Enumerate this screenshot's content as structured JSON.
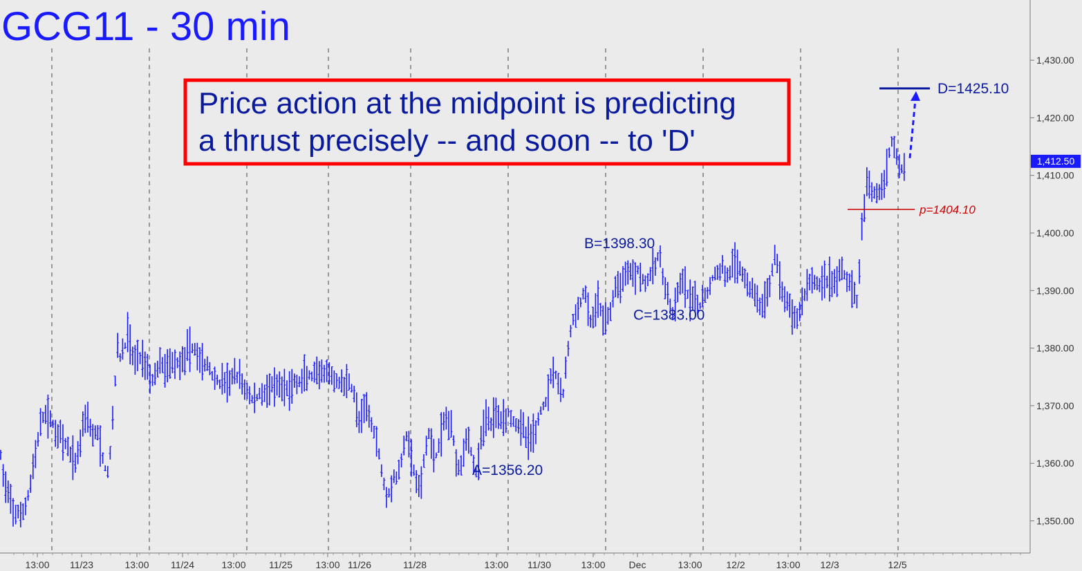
{
  "chart_data": {
    "type": "bar",
    "style": "ohlc-bars",
    "title": "GCG11 - 30 min",
    "annotation": {
      "line1": "Price action at the midpoint is predicting",
      "line2": "a thrust precisely -- and soon -- to 'D'"
    },
    "ylim": [
      1346,
      1432
    ],
    "yticks": [
      1350,
      1360,
      1370,
      1380,
      1390,
      1400,
      1410,
      1420,
      1430
    ],
    "ytick_labels": [
      "1,350.00",
      "1,360.00",
      "1,370.00",
      "1,380.00",
      "1,390.00",
      "1,400.00",
      "1,410.00",
      "1,420.00",
      "1,430.00"
    ],
    "last_price": 1412.5,
    "last_price_label": "1,412.50",
    "xticks": [
      {
        "label": "13:00",
        "divider": true
      },
      {
        "label": "11/23",
        "divider": false
      },
      {
        "label": "13:00",
        "divider": true
      },
      {
        "label": "11/24",
        "divider": false
      },
      {
        "label": "13:00",
        "divider": true
      },
      {
        "label": "11/25",
        "divider": false
      },
      {
        "label": "13:00",
        "divider": true
      },
      {
        "label": "11/26",
        "divider": false
      },
      {
        "label": "11/28",
        "divider": true
      },
      {
        "label": "13:00",
        "divider": false
      },
      {
        "label": "11/30",
        "divider": true
      },
      {
        "label": "13:00",
        "divider": true
      },
      {
        "label": "Dec",
        "divider": false
      },
      {
        "label": "13:00",
        "divider": true
      },
      {
        "label": "12/2",
        "divider": false
      },
      {
        "label": "13:00",
        "divider": true
      },
      {
        "label": "12/3",
        "divider": false
      },
      {
        "label": "12/5",
        "divider": true
      }
    ],
    "pivots": [
      {
        "name": "A",
        "label": "A=1356.20",
        "value": 1356.2
      },
      {
        "name": "B",
        "label": "B=1398.30",
        "value": 1398.3
      },
      {
        "name": "C",
        "label": "C=1383.00",
        "value": 1383.0
      },
      {
        "name": "D",
        "label": "D=1425.10",
        "value": 1425.1
      }
    ],
    "midpoint": {
      "label": "p=1404.10",
      "value": 1404.1
    },
    "path": [
      [
        0,
        1362
      ],
      [
        5,
        1358
      ],
      [
        10,
        1355
      ],
      [
        15,
        1353
      ],
      [
        20,
        1351
      ],
      [
        25,
        1352
      ],
      [
        30,
        1350
      ],
      [
        35,
        1352
      ],
      [
        40,
        1354
      ],
      [
        45,
        1357
      ],
      [
        50,
        1361
      ],
      [
        55,
        1364
      ],
      [
        60,
        1367
      ],
      [
        65,
        1369
      ],
      [
        70,
        1368
      ],
      [
        75,
        1367
      ],
      [
        80,
        1366
      ],
      [
        85,
        1365
      ],
      [
        90,
        1364
      ],
      [
        95,
        1363
      ],
      [
        100,
        1362
      ],
      [
        105,
        1361
      ],
      [
        110,
        1360
      ],
      [
        115,
        1363
      ],
      [
        120,
        1367
      ],
      [
        125,
        1369
      ],
      [
        130,
        1367
      ],
      [
        135,
        1364
      ],
      [
        140,
        1366
      ],
      [
        145,
        1363
      ],
      [
        150,
        1360
      ],
      [
        155,
        1358
      ],
      [
        160,
        1362
      ],
      [
        165,
        1372
      ],
      [
        170,
        1380
      ],
      [
        175,
        1378
      ],
      [
        180,
        1380
      ],
      [
        185,
        1383
      ],
      [
        190,
        1379
      ],
      [
        195,
        1378
      ],
      [
        200,
        1379
      ],
      [
        205,
        1378
      ],
      [
        210,
        1378
      ],
      [
        215,
        1376
      ],
      [
        220,
        1374
      ],
      [
        225,
        1376
      ],
      [
        230,
        1377
      ],
      [
        235,
        1377
      ],
      [
        240,
        1376
      ],
      [
        245,
        1377
      ],
      [
        250,
        1378
      ],
      [
        255,
        1377
      ],
      [
        260,
        1378
      ],
      [
        265,
        1378
      ],
      [
        270,
        1379
      ],
      [
        275,
        1380
      ],
      [
        280,
        1380
      ],
      [
        285,
        1379
      ],
      [
        290,
        1378
      ],
      [
        295,
        1377
      ],
      [
        300,
        1377
      ],
      [
        305,
        1376
      ],
      [
        310,
        1375
      ],
      [
        315,
        1374
      ],
      [
        320,
        1374
      ],
      [
        325,
        1374
      ],
      [
        330,
        1374
      ],
      [
        335,
        1375
      ],
      [
        340,
        1375
      ],
      [
        345,
        1375
      ],
      [
        350,
        1374
      ],
      [
        355,
        1373
      ],
      [
        360,
        1372
      ],
      [
        365,
        1371
      ],
      [
        370,
        1371
      ],
      [
        375,
        1372
      ],
      [
        380,
        1372
      ],
      [
        385,
        1373
      ],
      [
        390,
        1373
      ],
      [
        395,
        1373
      ],
      [
        400,
        1373
      ],
      [
        405,
        1373
      ],
      [
        410,
        1373
      ],
      [
        415,
        1373
      ],
      [
        420,
        1373
      ],
      [
        425,
        1374
      ],
      [
        430,
        1374
      ],
      [
        435,
        1374
      ],
      [
        440,
        1375
      ],
      [
        445,
        1375
      ],
      [
        450,
        1375
      ],
      [
        455,
        1375
      ],
      [
        460,
        1375
      ],
      [
        465,
        1375
      ],
      [
        470,
        1376
      ],
      [
        475,
        1375
      ],
      [
        480,
        1375
      ],
      [
        485,
        1374
      ],
      [
        490,
        1374
      ],
      [
        495,
        1374
      ],
      [
        500,
        1374
      ],
      [
        505,
        1374
      ],
      [
        510,
        1373
      ],
      [
        515,
        1370
      ],
      [
        520,
        1367
      ],
      [
        525,
        1368
      ],
      [
        530,
        1370
      ],
      [
        535,
        1368
      ],
      [
        540,
        1366
      ],
      [
        545,
        1364
      ],
      [
        550,
        1360
      ],
      [
        555,
        1357
      ],
      [
        560,
        1354
      ],
      [
        565,
        1356
      ],
      [
        570,
        1358
      ],
      [
        575,
        1357
      ],
      [
        580,
        1360
      ],
      [
        585,
        1364
      ],
      [
        590,
        1365
      ],
      [
        595,
        1361
      ],
      [
        600,
        1358
      ],
      [
        605,
        1355
      ],
      [
        610,
        1357
      ],
      [
        615,
        1362
      ],
      [
        620,
        1365
      ],
      [
        625,
        1363
      ],
      [
        630,
        1361
      ],
      [
        635,
        1363
      ],
      [
        640,
        1366
      ],
      [
        645,
        1368
      ],
      [
        650,
        1367
      ],
      [
        655,
        1365
      ],
      [
        660,
        1361
      ],
      [
        665,
        1359
      ],
      [
        670,
        1362
      ],
      [
        675,
        1365
      ],
      [
        680,
        1363
      ],
      [
        685,
        1360
      ],
      [
        690,
        1358
      ],
      [
        695,
        1363
      ],
      [
        700,
        1367
      ],
      [
        705,
        1368
      ],
      [
        710,
        1367
      ],
      [
        715,
        1368
      ],
      [
        720,
        1369
      ],
      [
        725,
        1368
      ],
      [
        730,
        1368
      ],
      [
        735,
        1369
      ],
      [
        740,
        1368
      ],
      [
        745,
        1367
      ],
      [
        750,
        1367
      ],
      [
        755,
        1366
      ],
      [
        760,
        1365
      ],
      [
        765,
        1364
      ],
      [
        770,
        1365
      ],
      [
        775,
        1366
      ],
      [
        780,
        1368
      ],
      [
        785,
        1370
      ],
      [
        790,
        1371
      ],
      [
        795,
        1374
      ],
      [
        800,
        1377
      ],
      [
        805,
        1375
      ],
      [
        810,
        1373
      ],
      [
        815,
        1372
      ],
      [
        820,
        1378
      ],
      [
        825,
        1383
      ],
      [
        830,
        1385
      ],
      [
        835,
        1386
      ],
      [
        840,
        1388
      ],
      [
        845,
        1390
      ],
      [
        850,
        1387
      ],
      [
        855,
        1384
      ],
      [
        860,
        1386
      ],
      [
        865,
        1388
      ],
      [
        870,
        1386
      ],
      [
        875,
        1385
      ],
      [
        880,
        1385
      ],
      [
        885,
        1388
      ],
      [
        890,
        1390
      ],
      [
        895,
        1391
      ],
      [
        900,
        1392
      ],
      [
        905,
        1393
      ],
      [
        910,
        1394
      ],
      [
        915,
        1393
      ],
      [
        920,
        1393
      ],
      [
        925,
        1394
      ],
      [
        930,
        1392
      ],
      [
        935,
        1391
      ],
      [
        940,
        1393
      ],
      [
        945,
        1393
      ],
      [
        950,
        1396
      ],
      [
        955,
        1395
      ],
      [
        960,
        1392
      ],
      [
        965,
        1389
      ],
      [
        970,
        1387
      ],
      [
        975,
        1385
      ],
      [
        980,
        1389
      ],
      [
        985,
        1392
      ],
      [
        990,
        1391
      ],
      [
        995,
        1389
      ],
      [
        1000,
        1388
      ],
      [
        1005,
        1388
      ],
      [
        1010,
        1387
      ],
      [
        1015,
        1388
      ],
      [
        1020,
        1389
      ],
      [
        1025,
        1390
      ],
      [
        1030,
        1392
      ],
      [
        1035,
        1393
      ],
      [
        1040,
        1393
      ],
      [
        1045,
        1394
      ],
      [
        1050,
        1393
      ],
      [
        1055,
        1393
      ],
      [
        1060,
        1394
      ],
      [
        1065,
        1395
      ],
      [
        1070,
        1394
      ],
      [
        1075,
        1393
      ],
      [
        1080,
        1391
      ],
      [
        1085,
        1390
      ],
      [
        1090,
        1391
      ],
      [
        1095,
        1388
      ],
      [
        1100,
        1387
      ],
      [
        1105,
        1388
      ],
      [
        1110,
        1389
      ],
      [
        1115,
        1392
      ],
      [
        1120,
        1397
      ],
      [
        1125,
        1394
      ],
      [
        1130,
        1390
      ],
      [
        1135,
        1388
      ],
      [
        1140,
        1388
      ],
      [
        1145,
        1386
      ],
      [
        1150,
        1385
      ],
      [
        1155,
        1386
      ],
      [
        1160,
        1388
      ],
      [
        1165,
        1390
      ],
      [
        1170,
        1392
      ],
      [
        1175,
        1392
      ],
      [
        1180,
        1391
      ],
      [
        1185,
        1391
      ],
      [
        1190,
        1392
      ],
      [
        1195,
        1392
      ],
      [
        1200,
        1392
      ],
      [
        1205,
        1391
      ],
      [
        1210,
        1392
      ],
      [
        1215,
        1393
      ],
      [
        1220,
        1393
      ],
      [
        1225,
        1392
      ],
      [
        1230,
        1391
      ],
      [
        1235,
        1390
      ],
      [
        1240,
        1388
      ],
      [
        1245,
        1398
      ],
      [
        1250,
        1404
      ],
      [
        1255,
        1409
      ],
      [
        1260,
        1408
      ],
      [
        1265,
        1407
      ],
      [
        1270,
        1407
      ],
      [
        1275,
        1408
      ],
      [
        1280,
        1410
      ],
      [
        1285,
        1413
      ],
      [
        1290,
        1416
      ],
      [
        1295,
        1415
      ],
      [
        1300,
        1412
      ],
      [
        1305,
        1411
      ],
      [
        1310,
        1413
      ]
    ]
  }
}
